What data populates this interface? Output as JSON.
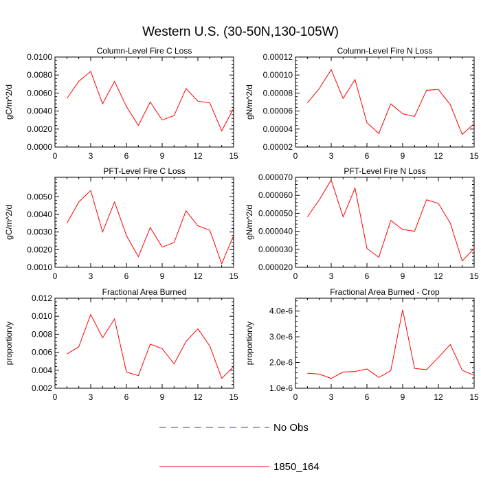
{
  "figure": {
    "title": "Western U.S. (30-50N,130-105W)",
    "legend": [
      {
        "label": "No Obs",
        "color": "#3b3bb3",
        "dash": true
      },
      {
        "label": "1850_164",
        "color": "#ff0000",
        "dash": false
      }
    ]
  },
  "chart_data": [
    {
      "type": "line",
      "title": "Column-Level Fire C Loss",
      "xlabel": "",
      "ylabel": "gC/m^2/d",
      "xlim": [
        0,
        15
      ],
      "ylim": [
        0.0,
        0.01
      ],
      "xticks": [
        "0",
        "3",
        "6",
        "9",
        "12",
        "15"
      ],
      "yticks": [
        "0.0000",
        "0.0020",
        "0.0040",
        "0.0060",
        "0.0080",
        "0.0100"
      ],
      "x": [
        1,
        2,
        3,
        4,
        5,
        6,
        7,
        8,
        9,
        10,
        11,
        12,
        13,
        14,
        15
      ],
      "series": [
        {
          "name": "1850_164",
          "color": "#ff0000",
          "values": [
            0.0054,
            0.0073,
            0.0084,
            0.0048,
            0.0073,
            0.0045,
            0.0024,
            0.005,
            0.003,
            0.0035,
            0.0065,
            0.0051,
            0.0049,
            0.0018,
            0.0043
          ]
        }
      ]
    },
    {
      "type": "line",
      "title": "Column-Level Fire N Loss",
      "xlabel": "",
      "ylabel": "gN/m^2/d",
      "xlim": [
        0,
        15
      ],
      "ylim": [
        2e-05,
        0.00012
      ],
      "xticks": [
        "0",
        "3",
        "6",
        "9",
        "12",
        "15"
      ],
      "yticks": [
        "0.00002",
        "0.00004",
        "0.00006",
        "0.00008",
        "0.00010",
        "0.00012"
      ],
      "x": [
        1,
        2,
        3,
        4,
        5,
        6,
        7,
        8,
        9,
        10,
        11,
        12,
        13,
        14,
        15
      ],
      "series": [
        {
          "name": "1850_164",
          "color": "#ff0000",
          "values": [
            6.9e-05,
            8.5e-05,
            0.000106,
            7.4e-05,
            9.5e-05,
            4.7e-05,
            3.5e-05,
            6.8e-05,
            5.7e-05,
            5.4e-05,
            8.3e-05,
            8.4e-05,
            6.7e-05,
            3.4e-05,
            4.6e-05
          ]
        }
      ]
    },
    {
      "type": "line",
      "title": "PFT-Level Fire C Loss",
      "xlabel": "",
      "ylabel": "gC/m^2/d",
      "xlim": [
        0,
        15
      ],
      "ylim": [
        0.001,
        0.0061
      ],
      "xticks": [
        "0",
        "3",
        "6",
        "9",
        "12",
        "15"
      ],
      "yticks": [
        "0.0010",
        "0.0020",
        "0.0030",
        "0.0040",
        "0.0050"
      ],
      "x": [
        1,
        2,
        3,
        4,
        5,
        6,
        7,
        8,
        9,
        10,
        11,
        12,
        13,
        14,
        15
      ],
      "series": [
        {
          "name": "1850_164",
          "color": "#ff0000",
          "values": [
            0.0035,
            0.0047,
            0.00535,
            0.003,
            0.0047,
            0.0028,
            0.0016,
            0.00325,
            0.00215,
            0.0024,
            0.0042,
            0.00335,
            0.0031,
            0.0012,
            0.0028
          ]
        }
      ]
    },
    {
      "type": "line",
      "title": "PFT-Level Fire N Loss",
      "xlabel": "",
      "ylabel": "gN/m^2/d",
      "xlim": [
        0,
        15
      ],
      "ylim": [
        2e-05,
        7e-05
      ],
      "xticks": [
        "0",
        "3",
        "6",
        "9",
        "12",
        "15"
      ],
      "yticks": [
        "0.000020",
        "0.000030",
        "0.000040",
        "0.000050",
        "0.000060",
        "0.000070"
      ],
      "x": [
        1,
        2,
        3,
        4,
        5,
        6,
        7,
        8,
        9,
        10,
        11,
        12,
        13,
        14,
        15
      ],
      "series": [
        {
          "name": "1850_164",
          "color": "#ff0000",
          "values": [
            4.8e-05,
            5.75e-05,
            6.85e-05,
            4.8e-05,
            6.4e-05,
            3.05e-05,
            2.55e-05,
            4.6e-05,
            4.1e-05,
            4e-05,
            5.75e-05,
            5.55e-05,
            4.45e-05,
            2.35e-05,
            3.05e-05
          ]
        }
      ]
    },
    {
      "type": "line",
      "title": "Fractional Area Burned",
      "xlabel": "",
      "ylabel": "proportion/y",
      "xlim": [
        0,
        15
      ],
      "ylim": [
        0.002,
        0.012
      ],
      "xticks": [
        "0",
        "3",
        "6",
        "9",
        "12",
        "15"
      ],
      "yticks": [
        "0.002",
        "0.004",
        "0.006",
        "0.008",
        "0.010",
        "0.012"
      ],
      "x": [
        1,
        2,
        3,
        4,
        5,
        6,
        7,
        8,
        9,
        10,
        11,
        12,
        13,
        14,
        15
      ],
      "series": [
        {
          "name": "1850_164",
          "color": "#ff0000",
          "values": [
            0.0058,
            0.0066,
            0.0102,
            0.0076,
            0.0097,
            0.0038,
            0.0034,
            0.0069,
            0.0064,
            0.0047,
            0.0072,
            0.0086,
            0.0067,
            0.0031,
            0.0044
          ]
        }
      ]
    },
    {
      "type": "line",
      "title": "Fractional Area Burned - Crop",
      "xlabel": "",
      "ylabel": "proportion/y",
      "xlim": [
        0,
        15
      ],
      "ylim": [
        1e-06,
        4.5e-06
      ],
      "xticks": [
        "0",
        "3",
        "6",
        "9",
        "12",
        "15"
      ],
      "yticks": [
        "1.0e-6",
        "2.0e-6",
        "3.0e-6",
        "4.0e-6"
      ],
      "x": [
        1,
        2,
        3,
        4,
        5,
        6,
        7,
        8,
        9,
        10,
        11,
        12,
        13,
        14,
        15
      ],
      "series": [
        {
          "name": "1850_164",
          "color": "#ff0000",
          "values": [
            1.58e-06,
            1.55e-06,
            1.38e-06,
            1.63e-06,
            1.65e-06,
            1.75e-06,
            1.42e-06,
            1.68e-06,
            4.05e-06,
            1.77e-06,
            1.72e-06,
            2.2e-06,
            2.7e-06,
            1.7e-06,
            1.5e-06
          ]
        }
      ]
    }
  ]
}
